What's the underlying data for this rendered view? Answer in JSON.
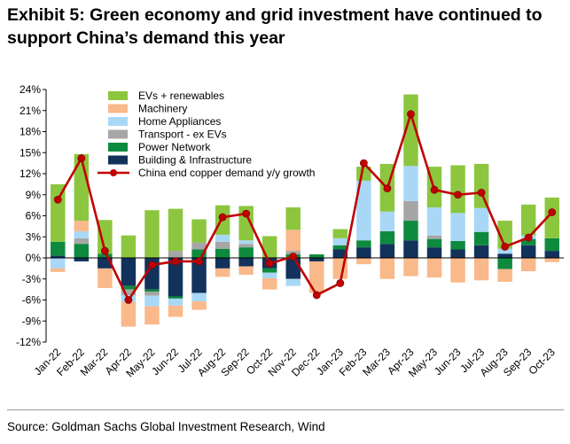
{
  "title": "Exhibit 5: Green economy and grid investment have continued to support China’s demand this year",
  "source": "Source: Goldman Sachs Global Investment Research, Wind",
  "chart_data": {
    "type": "bar",
    "stacked": true,
    "categories": [
      "Jan-22",
      "Feb-22",
      "Mar-22",
      "Apr-22",
      "May-22",
      "Jun-22",
      "Jul-22",
      "Aug-22",
      "Sep-22",
      "Oct-22",
      "Nov-22",
      "Dec-22",
      "Jan-23",
      "Feb-23",
      "Mar-23",
      "Apr-23",
      "May-23",
      "Jun-23",
      "Jul-23",
      "Aug-23",
      "Sep-23",
      "Oct-23"
    ],
    "ylim": [
      -12,
      24
    ],
    "yticks": [
      -12,
      -9,
      -6,
      -3,
      0,
      3,
      6,
      9,
      12,
      15,
      18,
      21,
      24
    ],
    "ytick_format": "percent",
    "grid": false,
    "legend_position": "top-left",
    "series": [
      {
        "name": "Building & Infrastructure",
        "color": "#12325c",
        "values": [
          0.3,
          -0.5,
          -1.5,
          -4.0,
          -4.5,
          -5.5,
          -5.0,
          -1.5,
          -1.2,
          -1.5,
          -3.0,
          -0.5,
          1.2,
          1.5,
          2.0,
          2.5,
          1.5,
          1.2,
          1.8,
          0.6,
          1.8,
          1.0
        ]
      },
      {
        "name": "Power Network",
        "color": "#0d8a3e",
        "values": [
          2.0,
          2.0,
          0.6,
          -0.5,
          -0.3,
          -0.3,
          1.2,
          1.3,
          1.5,
          -0.6,
          0.5,
          0.5,
          0.6,
          1.0,
          1.8,
          2.8,
          1.2,
          1.2,
          1.9,
          -1.6,
          0.9,
          1.8
        ]
      },
      {
        "name": "Transport - ex EVs",
        "color": "#a6a6a6",
        "values": [
          0.0,
          0.8,
          0.0,
          -0.8,
          -0.6,
          1.0,
          1.0,
          1.0,
          0.5,
          0.0,
          0.5,
          0.0,
          0.0,
          0.0,
          0.0,
          2.8,
          0.5,
          0.0,
          0.0,
          0.0,
          0.0,
          0.0
        ]
      },
      {
        "name": "Home Appliances",
        "color": "#a9d8f7",
        "values": [
          -1.5,
          1.0,
          0.0,
          -1.0,
          -1.5,
          -1.0,
          -1.2,
          1.0,
          0.5,
          -0.8,
          -1.0,
          0.0,
          1.0,
          8.5,
          2.8,
          5.0,
          4.0,
          4.0,
          3.4,
          0.7,
          0.5,
          0.0
        ]
      },
      {
        "name": "Machinery",
        "color": "#f9b98a",
        "values": [
          -0.5,
          1.5,
          -2.8,
          -3.5,
          -2.6,
          -1.6,
          -1.2,
          -1.2,
          -1.2,
          -1.6,
          3.0,
          -4.5,
          -3.0,
          -0.9,
          -3.0,
          -2.6,
          -2.8,
          -3.5,
          -3.2,
          -1.8,
          -1.9,
          -0.6
        ]
      },
      {
        "name": "EVs + renewables",
        "color": "#8cc63f",
        "values": [
          8.2,
          9.5,
          4.8,
          3.2,
          6.8,
          6.0,
          3.3,
          4.2,
          4.9,
          3.1,
          3.2,
          0.0,
          1.3,
          2.0,
          6.8,
          10.2,
          5.8,
          6.8,
          6.3,
          4.0,
          4.4,
          5.8
        ]
      }
    ],
    "line": {
      "name": "China end copper demand y/y growth",
      "color": "#c00000",
      "values": [
        8.3,
        14.2,
        1.0,
        -6.0,
        -1.0,
        -0.5,
        -0.5,
        5.8,
        6.3,
        -0.8,
        0.2,
        -5.3,
        -3.6,
        13.5,
        9.9,
        20.5,
        9.7,
        9.0,
        9.3,
        1.6,
        2.9,
        6.5
      ]
    },
    "legend_order": [
      "EVs + renewables",
      "Machinery",
      "Home Appliances",
      "Transport - ex EVs",
      "Power Network",
      "Building & Infrastructure",
      "China end copper demand y/y growth"
    ]
  }
}
